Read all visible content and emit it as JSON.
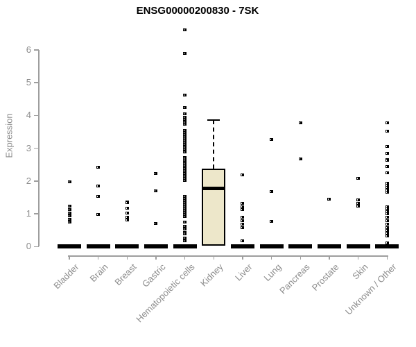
{
  "chart_data": {
    "type": "boxplot",
    "title": "ENSG00000200830 - 7SK",
    "ylabel": "Expression",
    "ylim": [
      0,
      6.8
    ],
    "yticks": [
      0,
      1,
      2,
      3,
      4,
      5,
      6
    ],
    "grid": false,
    "legend": "none",
    "colors": {
      "marker": "#000000",
      "box_fill": "#ede7ca",
      "box_border": "#000000",
      "median": "#000000",
      "axis": "#9e9e9e",
      "tick_label": "#8c8c8c",
      "title": "#000000"
    },
    "categories": [
      "Bladder",
      "Brain",
      "Breast",
      "Gastric",
      "Hematopoietic cells",
      "Kidney",
      "Liver",
      "Lung",
      "Pancreas",
      "Prostate",
      "Skin",
      "Unknown / Other"
    ],
    "groups": [
      {
        "category": "Bladder",
        "median": 0,
        "points": [
          1.98,
          1.24,
          1.13,
          1.03,
          0.93,
          0.84,
          0.75
        ]
      },
      {
        "category": "Brain",
        "median": 0,
        "points": [
          2.41,
          1.84,
          1.53,
          0.98
        ]
      },
      {
        "category": "Breast",
        "median": 0,
        "points": [
          1.37,
          1.33,
          1.16,
          1.02,
          0.9,
          0.81
        ]
      },
      {
        "category": "Gastric",
        "median": 0,
        "points": [
          2.23,
          1.7,
          0.71
        ]
      },
      {
        "category": "Hematopoietic cells",
        "median": 0,
        "points": [
          6.6,
          5.88,
          4.62,
          4.24,
          4.05,
          3.95,
          3.87,
          3.8,
          3.73,
          3.54,
          3.48,
          3.42,
          3.36,
          3.3,
          3.24,
          3.18,
          3.12,
          3.04,
          2.96,
          2.88,
          2.72,
          2.67,
          2.62,
          2.57,
          2.52,
          2.47,
          2.42,
          2.37,
          2.32,
          2.27,
          2.22,
          2.17,
          2.12,
          2.07,
          2.02,
          1.52,
          1.46,
          1.4,
          1.34,
          1.28,
          1.22,
          1.16,
          1.1,
          1.04,
          0.98,
          0.92,
          0.75,
          0.63,
          0.53,
          0.43,
          0.38,
          0.26,
          0.18
        ]
      },
      {
        "category": "Kidney",
        "box": {
          "whisker_high": 3.86,
          "q3": 2.37,
          "median": 1.78,
          "q1": 0.02
        },
        "points": []
      },
      {
        "category": "Liver",
        "median": 0,
        "points": [
          2.18,
          1.31,
          1.22,
          1.13,
          0.89,
          0.79,
          0.69,
          0.57,
          0.18
        ]
      },
      {
        "category": "Lung",
        "median": 0,
        "points": [
          3.27,
          1.67,
          0.76
        ]
      },
      {
        "category": "Pancreas",
        "median": 0,
        "points": [
          3.78,
          2.68
        ]
      },
      {
        "category": "Prostate",
        "median": 0,
        "points": [
          1.45
        ]
      },
      {
        "category": "Skin",
        "median": 0,
        "points": [
          2.07,
          1.42,
          1.32,
          1.23
        ]
      },
      {
        "category": "Unknown / Other",
        "median": 0,
        "points": [
          3.77,
          3.51,
          3.06,
          2.85,
          2.66,
          2.63,
          2.44,
          2.24,
          1.94,
          1.87,
          1.8,
          1.73,
          1.66,
          1.21,
          1.16,
          1.11,
          1.06,
          1.01,
          0.9,
          0.79,
          0.69,
          0.58,
          0.5,
          0.41,
          0.33,
          0.12
        ]
      }
    ]
  }
}
